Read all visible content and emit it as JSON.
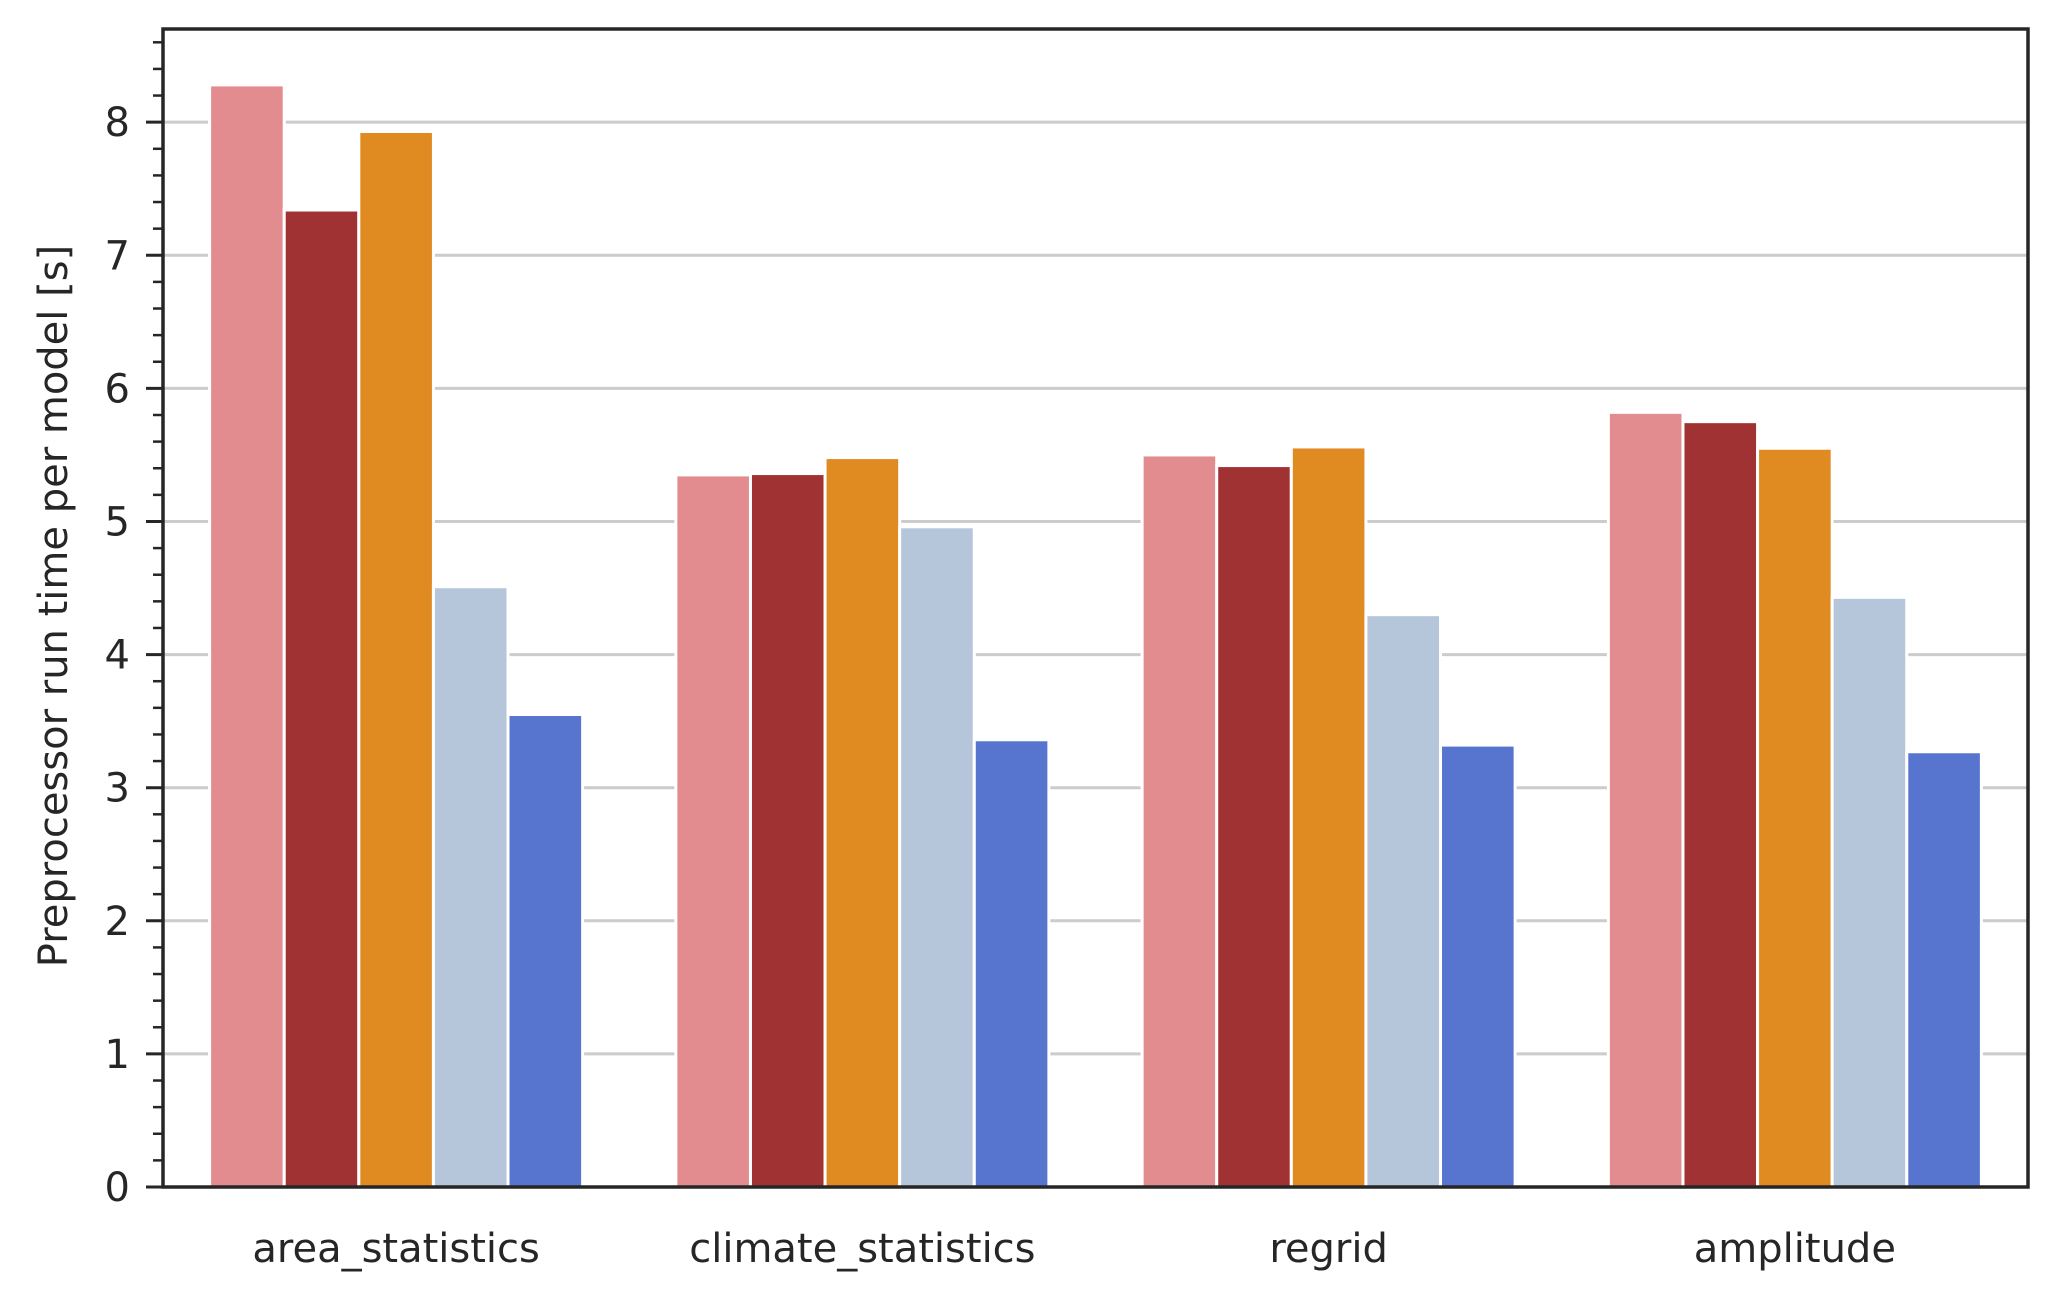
{
  "chart_data": {
    "type": "bar",
    "title": "",
    "xlabel": "",
    "ylabel": "Preprocessor run time per model [s]",
    "categories": [
      "area_statistics",
      "climate_statistics",
      "regrid",
      "amplitude"
    ],
    "series": [
      {
        "color": "#e28c8f",
        "values": [
          8.28,
          5.35,
          5.5,
          5.82
        ]
      },
      {
        "color": "#a03234",
        "values": [
          7.34,
          5.36,
          5.42,
          5.75
        ]
      },
      {
        "color": "#e08a22",
        "values": [
          7.93,
          5.48,
          5.56,
          5.55
        ]
      },
      {
        "color": "#b6c6da",
        "values": [
          4.51,
          4.96,
          4.3,
          4.43
        ]
      },
      {
        "color": "#5775cf",
        "values": [
          3.55,
          3.36,
          3.32,
          3.27
        ]
      }
    ],
    "ylim": [
      0,
      8.7
    ],
    "yticks": [
      "0",
      "1",
      "2",
      "3",
      "4",
      "5",
      "6",
      "7",
      "8"
    ],
    "grid": "horizontal",
    "grid_color": "#cccccc",
    "axis_color": "#262626"
  }
}
